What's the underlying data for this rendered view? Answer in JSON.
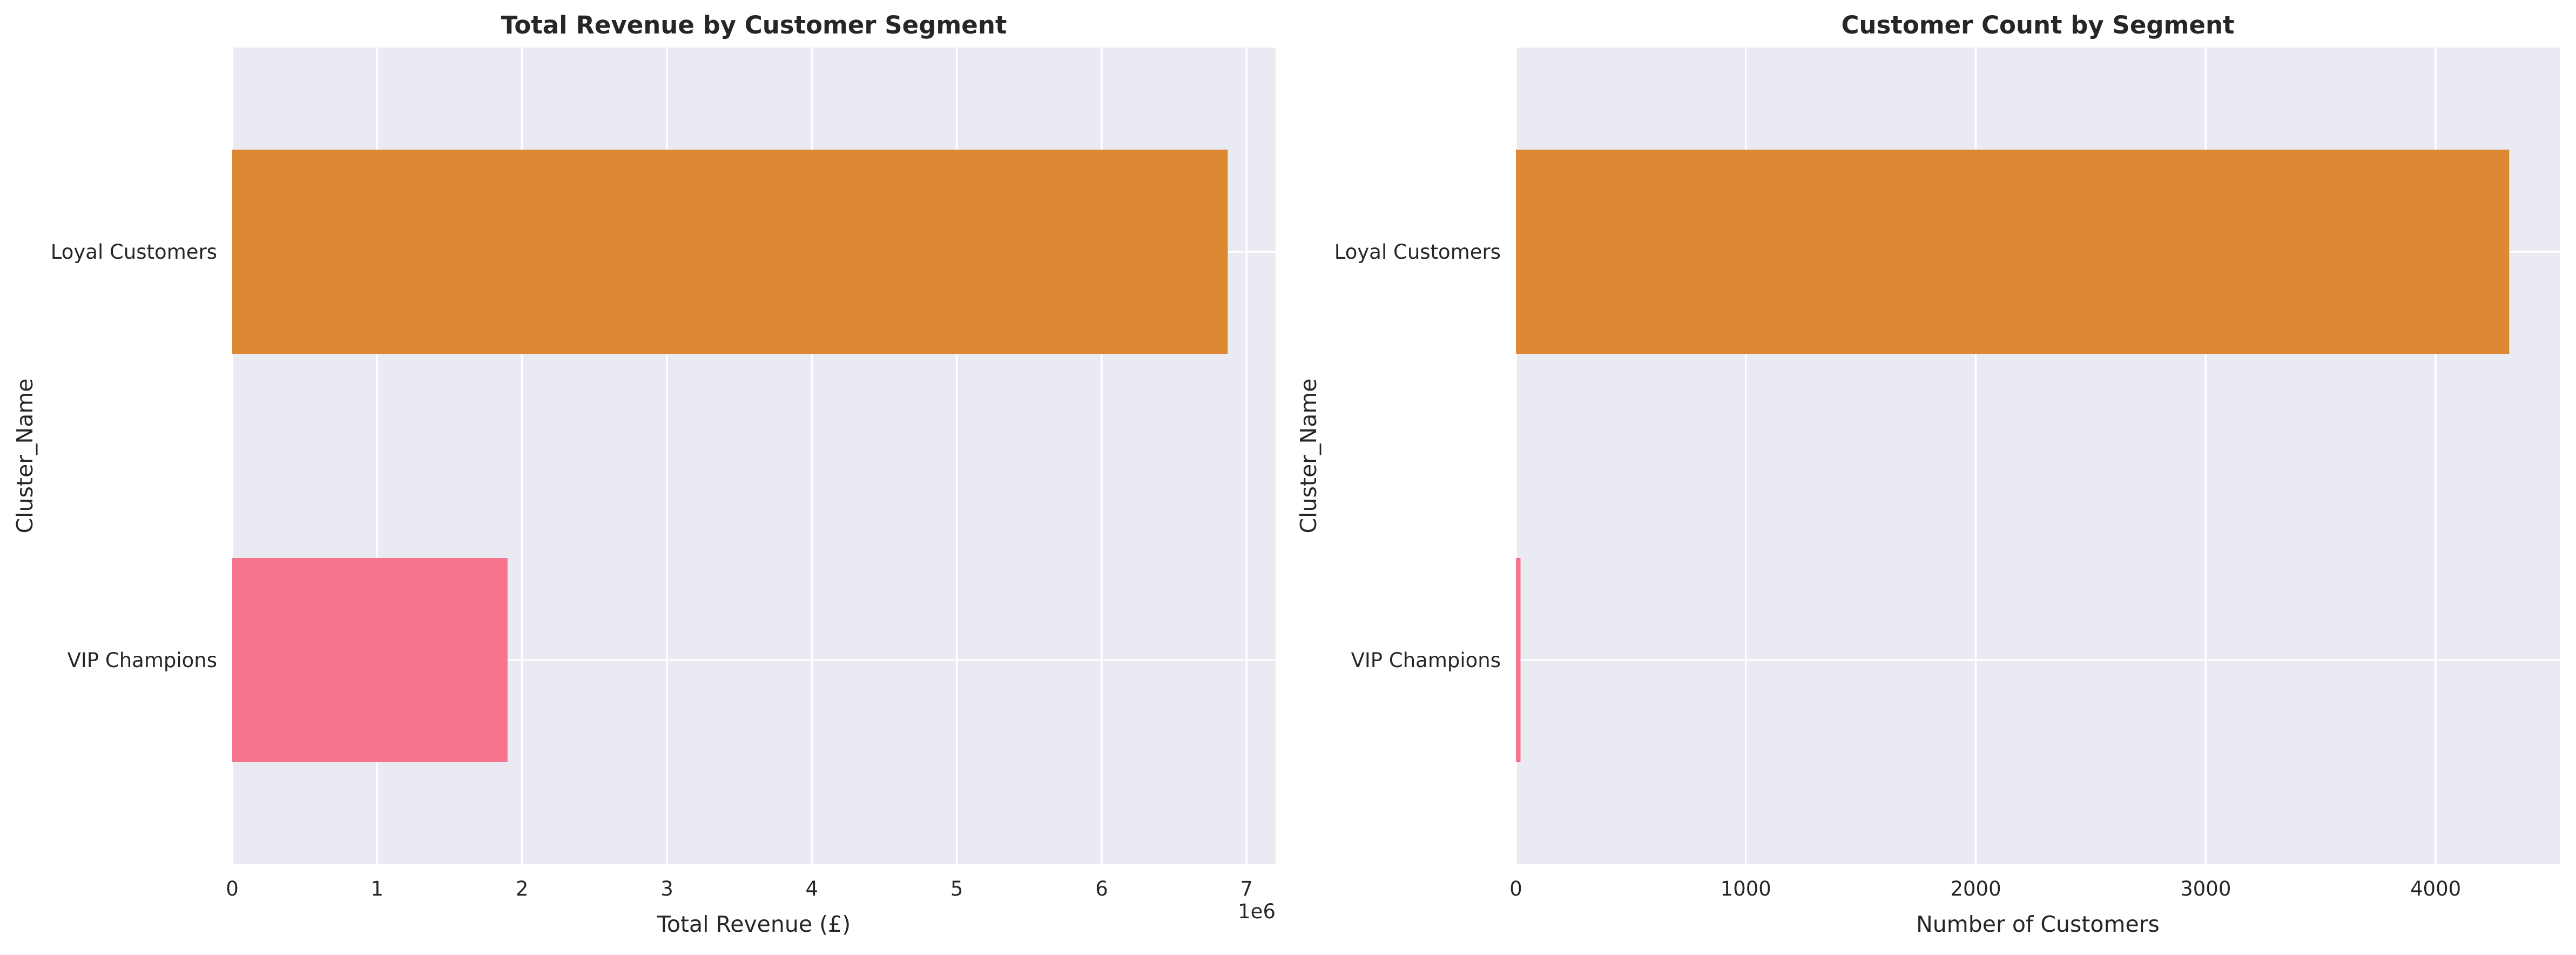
{
  "chart_data": [
    {
      "type": "bar",
      "orientation": "horizontal",
      "title": "Total Revenue by Customer Segment",
      "xlabel": "Total Revenue (£)",
      "ylabel": "Cluster_Name",
      "categories": [
        "Loyal Customers",
        "VIP Champions"
      ],
      "values": [
        6870000,
        1900000
      ],
      "colors": [
        "#dd8833",
        "#f7748d"
      ],
      "xlim": [
        0,
        7200000
      ],
      "xticks": [
        0,
        1000000,
        2000000,
        3000000,
        4000000,
        5000000,
        6000000,
        7000000
      ],
      "xtick_labels": [
        "0",
        "1",
        "2",
        "3",
        "4",
        "5",
        "6",
        "7"
      ],
      "x_offset_label": "1e6",
      "grid": true
    },
    {
      "type": "bar",
      "orientation": "horizontal",
      "title": "Customer Count by Segment",
      "xlabel": "Number of Customers",
      "ylabel": "Cluster_Name",
      "categories": [
        "Loyal Customers",
        "VIP Champions"
      ],
      "values": [
        4320,
        20
      ],
      "colors": [
        "#dd8833",
        "#f7748d"
      ],
      "xlim": [
        0,
        4540
      ],
      "xticks": [
        0,
        1000,
        2000,
        3000,
        4000
      ],
      "xtick_labels": [
        "0",
        "1000",
        "2000",
        "3000",
        "4000"
      ],
      "grid": true
    }
  ],
  "style": {
    "plot_background": "#eaeaf2",
    "grid_color": "#ffffff"
  }
}
